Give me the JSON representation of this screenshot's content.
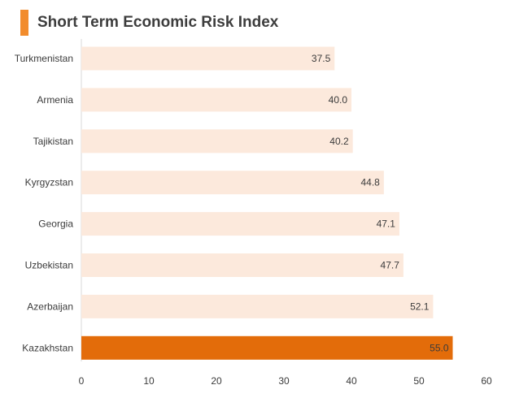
{
  "title": "Short Term Economic Risk Index",
  "colors": {
    "title_accent": "#F28C2C",
    "bar_default": "#FCE9DC",
    "bar_highlight": "#E36C0A",
    "label_on_highlight": "#ffffff"
  },
  "chart_data": {
    "type": "bar",
    "orientation": "horizontal",
    "title": "Short Term Economic Risk Index",
    "categories": [
      "Turkmenistan",
      "Armenia",
      "Tajikistan",
      "Kyrgyzstan",
      "Georgia",
      "Uzbekistan",
      "Azerbaijan",
      "Kazakhstan"
    ],
    "values": [
      37.5,
      40.0,
      40.2,
      44.8,
      47.1,
      47.7,
      52.1,
      55.0
    ],
    "value_labels": [
      "37.5",
      "40.0",
      "40.2",
      "44.8",
      "47.1",
      "47.7",
      "52.1",
      "55.0"
    ],
    "highlight_category": "Kazakhstan",
    "xlim": [
      0,
      60
    ],
    "xticks": [
      0,
      10,
      20,
      30,
      40,
      50,
      60
    ],
    "xlabel": "",
    "ylabel": "",
    "grid": false,
    "legend": "none"
  }
}
